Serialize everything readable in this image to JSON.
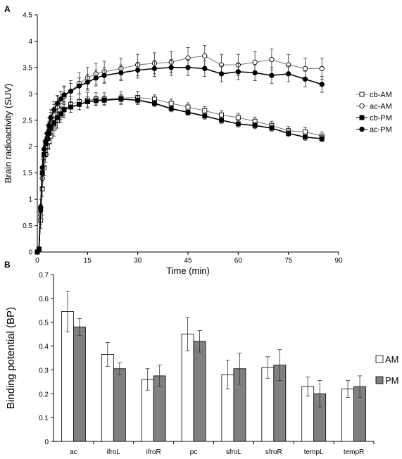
{
  "chart_data": [
    {
      "panel_label": "A",
      "type": "line",
      "xlabel": "Time (min)",
      "ylabel": "Brain radioactivity (SUV)",
      "xlim": [
        0,
        90
      ],
      "ylim": [
        0,
        4.5
      ],
      "xticks": [
        0,
        15,
        30,
        45,
        60,
        75,
        90
      ],
      "yticks": [
        0,
        0.5,
        1,
        1.5,
        2,
        2.5,
        3,
        3.5,
        4,
        4.5
      ],
      "legend_position": "right",
      "series": [
        {
          "name": "cb-AM",
          "marker": "open-square",
          "line_color": "#777777",
          "x": [
            0,
            0.5,
            1,
            1.5,
            2,
            2.5,
            3,
            3.5,
            4,
            5,
            6,
            7,
            8,
            10,
            12.5,
            15,
            17.5,
            20,
            25,
            30,
            35,
            40,
            45,
            50,
            55,
            60,
            65,
            70,
            75,
            80,
            85
          ],
          "y": [
            0,
            0.05,
            0.6,
            1.2,
            1.6,
            1.85,
            2.0,
            2.1,
            2.2,
            2.35,
            2.5,
            2.6,
            2.7,
            2.8,
            2.85,
            2.88,
            2.9,
            2.9,
            2.92,
            2.93,
            2.9,
            2.82,
            2.75,
            2.68,
            2.6,
            2.55,
            2.48,
            2.4,
            2.3,
            2.28,
            2.2
          ],
          "err": [
            0,
            0.05,
            0.15,
            0.15,
            0.15,
            0.15,
            0.15,
            0.15,
            0.15,
            0.15,
            0.15,
            0.15,
            0.15,
            0.15,
            0.15,
            0.15,
            0.12,
            0.12,
            0.12,
            0.12,
            0.08,
            0.08,
            0.08,
            0.08,
            0.08,
            0.08,
            0.08,
            0.08,
            0.08,
            0.08,
            0.08
          ]
        },
        {
          "name": "ac-AM",
          "marker": "open-circle",
          "line_color": "#777777",
          "x": [
            0,
            0.5,
            1,
            1.5,
            2,
            2.5,
            3,
            3.5,
            4,
            5,
            6,
            7,
            8,
            10,
            12.5,
            15,
            17.5,
            20,
            25,
            30,
            35,
            40,
            45,
            50,
            55,
            60,
            65,
            70,
            75,
            80,
            85
          ],
          "y": [
            0,
            0.05,
            0.7,
            1.4,
            1.8,
            2.0,
            2.15,
            2.3,
            2.45,
            2.6,
            2.75,
            2.85,
            2.95,
            3.05,
            3.2,
            3.3,
            3.38,
            3.42,
            3.48,
            3.55,
            3.58,
            3.6,
            3.68,
            3.72,
            3.55,
            3.55,
            3.6,
            3.65,
            3.55,
            3.48,
            3.48
          ],
          "err": [
            0,
            0.05,
            0.18,
            0.18,
            0.18,
            0.18,
            0.18,
            0.18,
            0.2,
            0.2,
            0.2,
            0.2,
            0.2,
            0.2,
            0.2,
            0.2,
            0.2,
            0.2,
            0.2,
            0.2,
            0.2,
            0.2,
            0.2,
            0.2,
            0.2,
            0.2,
            0.2,
            0.2,
            0.2,
            0.2,
            0.2
          ]
        },
        {
          "name": "cb-PM",
          "marker": "filled-square",
          "line_color": "#000000",
          "x": [
            0,
            0.5,
            1,
            1.5,
            2,
            2.5,
            3,
            3.5,
            4,
            5,
            6,
            7,
            8,
            10,
            12.5,
            15,
            17.5,
            20,
            25,
            30,
            35,
            40,
            45,
            50,
            55,
            60,
            65,
            70,
            75,
            80,
            85
          ],
          "y": [
            0,
            0.05,
            0.8,
            1.5,
            1.85,
            2.05,
            2.15,
            2.25,
            2.35,
            2.45,
            2.55,
            2.62,
            2.7,
            2.75,
            2.8,
            2.85,
            2.87,
            2.88,
            2.9,
            2.88,
            2.82,
            2.72,
            2.65,
            2.58,
            2.5,
            2.43,
            2.4,
            2.35,
            2.25,
            2.18,
            2.15
          ],
          "err": [
            0,
            0.05,
            0.1,
            0.1,
            0.1,
            0.1,
            0.1,
            0.1,
            0.1,
            0.1,
            0.1,
            0.1,
            0.1,
            0.1,
            0.1,
            0.1,
            0.08,
            0.08,
            0.08,
            0.08,
            0.06,
            0.06,
            0.06,
            0.06,
            0.06,
            0.06,
            0.06,
            0.06,
            0.06,
            0.06,
            0.06
          ]
        },
        {
          "name": "ac-PM",
          "marker": "filled-circle",
          "line_color": "#000000",
          "x": [
            0,
            0.5,
            1,
            1.5,
            2,
            2.5,
            3,
            3.5,
            4,
            5,
            6,
            7,
            8,
            10,
            12.5,
            15,
            17.5,
            20,
            25,
            30,
            35,
            40,
            45,
            50,
            55,
            60,
            65,
            70,
            75,
            80,
            85
          ],
          "y": [
            0,
            0.05,
            0.85,
            1.6,
            1.95,
            2.1,
            2.25,
            2.4,
            2.55,
            2.7,
            2.82,
            2.9,
            2.98,
            3.05,
            3.15,
            3.22,
            3.3,
            3.35,
            3.4,
            3.45,
            3.48,
            3.5,
            3.5,
            3.48,
            3.38,
            3.42,
            3.4,
            3.35,
            3.38,
            3.28,
            3.18
          ],
          "err": [
            0,
            0.05,
            0.15,
            0.15,
            0.15,
            0.15,
            0.15,
            0.15,
            0.15,
            0.15,
            0.15,
            0.15,
            0.15,
            0.15,
            0.15,
            0.15,
            0.15,
            0.15,
            0.15,
            0.15,
            0.15,
            0.15,
            0.15,
            0.15,
            0.15,
            0.15,
            0.15,
            0.15,
            0.15,
            0.15,
            0.15
          ]
        }
      ]
    },
    {
      "panel_label": "B",
      "type": "bar",
      "xlabel": "",
      "ylabel": "Binding potential (BP)",
      "ylim": [
        0,
        0.7
      ],
      "yticks": [
        0,
        0.1,
        0.2,
        0.3,
        0.4,
        0.5,
        0.6,
        0.7
      ],
      "legend_position": "right",
      "categories": [
        "ac",
        "ifroL",
        "ifroR",
        "pc",
        "sfroL",
        "sfroR",
        "tempL",
        "tempR"
      ],
      "series": [
        {
          "name": "AM",
          "color": "#ffffff",
          "values": [
            0.545,
            0.365,
            0.26,
            0.45,
            0.28,
            0.31,
            0.23,
            0.22
          ],
          "err": [
            0.085,
            0.05,
            0.045,
            0.07,
            0.06,
            0.045,
            0.04,
            0.035
          ]
        },
        {
          "name": "PM",
          "color": "#808080",
          "values": [
            0.48,
            0.305,
            0.275,
            0.42,
            0.305,
            0.32,
            0.2,
            0.23
          ],
          "err": [
            0.035,
            0.025,
            0.045,
            0.045,
            0.065,
            0.065,
            0.055,
            0.045
          ]
        }
      ]
    }
  ]
}
